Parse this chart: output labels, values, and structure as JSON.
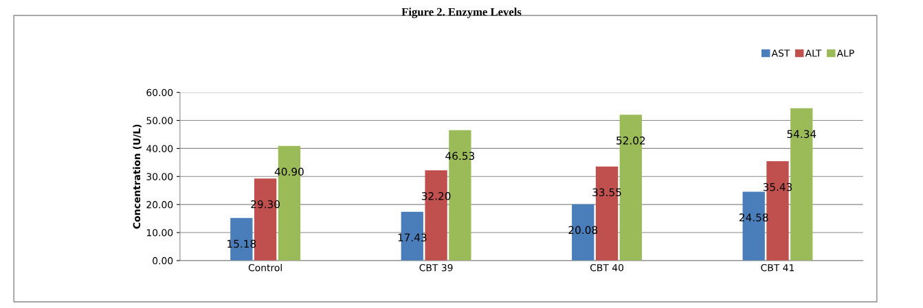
{
  "chart_data": {
    "type": "bar",
    "title": "Figure 2. Enzyme Levels",
    "ylabel": "Concentration (U/L)",
    "categories": [
      "Control",
      "CBT 39",
      "CBT 40",
      "CBT 41"
    ],
    "series": [
      {
        "name": "AST",
        "color": "#4a7ebb",
        "values": [
          15.18,
          17.43,
          20.08,
          24.58
        ],
        "value_labels": [
          "15.18",
          "17.43",
          "20.08",
          "24.58"
        ]
      },
      {
        "name": "ALT",
        "color": "#c0504d",
        "values": [
          29.3,
          32.2,
          33.55,
          35.43
        ],
        "value_labels": [
          "29.30",
          "32.20",
          "33.55",
          "35.43"
        ]
      },
      {
        "name": "ALP",
        "color": "#9bbb59",
        "values": [
          40.9,
          46.53,
          52.02,
          54.34
        ],
        "value_labels": [
          "40.90",
          "46.53",
          "52.02",
          "54.34"
        ]
      }
    ],
    "ylim": [
      0,
      60
    ],
    "yticks": [
      {
        "value": 0,
        "label": "0.00"
      },
      {
        "value": 10,
        "label": "10.00"
      },
      {
        "value": 20,
        "label": "20.00"
      },
      {
        "value": 30,
        "label": "30.00"
      },
      {
        "value": 40,
        "label": "40.00"
      },
      {
        "value": 50,
        "label": "50.00"
      },
      {
        "value": 60,
        "label": "60.00"
      }
    ],
    "grid": "y",
    "legend": "top right"
  }
}
